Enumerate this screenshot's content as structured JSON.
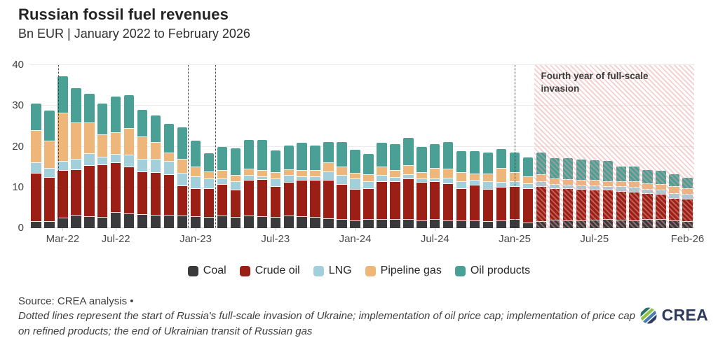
{
  "header": {
    "title": "Russian fossil fuel revenues",
    "subtitle": "Bn EUR | January 2022 to February 2026"
  },
  "legend": {
    "items": [
      {
        "label": "Coal",
        "color": "#3a3a3c"
      },
      {
        "label": "Crude oil",
        "color": "#9b1f14"
      },
      {
        "label": "LNG",
        "color": "#a3cfda"
      },
      {
        "label": "Pipeline gas",
        "color": "#efb67a"
      },
      {
        "label": "Oil products",
        "color": "#4ba095"
      }
    ]
  },
  "footer": {
    "source": "Source: CREA analysis •",
    "footnote": "Dotted lines represent the start of Russia's full-scale invasion of Ukraine; implementation of oil price cap; implementation of price cap on refined products; the end of Ukrainian transit of Russian gas",
    "logo_text": "CREA"
  },
  "chart_data": {
    "type": "bar",
    "stacked": true,
    "title": "Russian fossil fuel revenues",
    "ylabel": "Bn EUR",
    "xlabel": "",
    "ylim": [
      0,
      40
    ],
    "yticks": [
      0,
      10,
      20,
      30,
      40
    ],
    "grid": true,
    "legend_position": "bottom",
    "categories": [
      "Jan-22",
      "Feb-22",
      "Mar-22",
      "Apr-22",
      "May-22",
      "Jun-22",
      "Jul-22",
      "Aug-22",
      "Sep-22",
      "Oct-22",
      "Nov-22",
      "Dec-22",
      "Jan-23",
      "Feb-23",
      "Mar-23",
      "Apr-23",
      "May-23",
      "Jun-23",
      "Jul-23",
      "Aug-23",
      "Sep-23",
      "Oct-23",
      "Nov-23",
      "Dec-23",
      "Jan-24",
      "Feb-24",
      "Mar-24",
      "Apr-24",
      "May-24",
      "Jun-24",
      "Jul-24",
      "Aug-24",
      "Sep-24",
      "Oct-24",
      "Nov-24",
      "Dec-24",
      "Jan-25",
      "Feb-25",
      "Mar-25",
      "Apr-25",
      "May-25",
      "Jun-25",
      "Jul-25",
      "Aug-25",
      "Sep-25",
      "Oct-25",
      "Nov-25",
      "Dec-25",
      "Jan-26",
      "Feb-26"
    ],
    "x_tick_labels": [
      {
        "label": "Mar-22",
        "index": 2
      },
      {
        "label": "Jul-22",
        "index": 6
      },
      {
        "label": "Jan-23",
        "index": 12
      },
      {
        "label": "Jul-23",
        "index": 18
      },
      {
        "label": "Jan-24",
        "index": 24
      },
      {
        "label": "Jul-24",
        "index": 30
      },
      {
        "label": "Jan-25",
        "index": 36
      },
      {
        "label": "Jul-25",
        "index": 42
      },
      {
        "label": "Feb-26",
        "index": 49
      }
    ],
    "series": [
      {
        "name": "Coal",
        "color": "#3a3a3c",
        "values": [
          1.5,
          1.5,
          2.4,
          3.1,
          2.8,
          2.6,
          3.7,
          3.4,
          3.3,
          3.1,
          3.1,
          2.9,
          2.8,
          2.6,
          2.9,
          2.6,
          2.9,
          2.8,
          2.6,
          2.9,
          2.8,
          2.6,
          2.2,
          2.0,
          1.8,
          2.0,
          2.0,
          2.0,
          2.0,
          1.8,
          2.1,
          1.8,
          1.7,
          1.8,
          1.5,
          1.8,
          2.0,
          1.2,
          1.6,
          1.9,
          1.7,
          1.7,
          1.9,
          2.1,
          1.9,
          1.7,
          2.1,
          2.1,
          1.7,
          1.5
        ]
      },
      {
        "name": "Crude oil",
        "color": "#9b1f14",
        "values": [
          11.9,
          10.9,
          11.6,
          11.1,
          12.5,
          12.9,
          12.2,
          11.5,
          10.4,
          10.5,
          9.9,
          7.4,
          6.9,
          7.1,
          7.7,
          6.7,
          8.8,
          9.0,
          7.5,
          8.2,
          8.8,
          9.1,
          9.4,
          8.7,
          7.6,
          7.7,
          9.4,
          9.3,
          10.0,
          9.3,
          9.2,
          9.1,
          8.0,
          8.6,
          8.0,
          8.2,
          8.1,
          8.5,
          8.5,
          7.8,
          7.9,
          7.8,
          7.4,
          7.1,
          7.0,
          7.1,
          6.4,
          6.1,
          5.6,
          5.5
        ]
      },
      {
        "name": "LNG",
        "color": "#a3cfda",
        "values": [
          2.5,
          2.2,
          2.4,
          2.7,
          2.9,
          1.8,
          2.1,
          2.9,
          3.2,
          3.3,
          3.3,
          3.1,
          2.8,
          2.3,
          1.4,
          2.1,
          1.2,
          0.8,
          2.0,
          1.7,
          1.0,
          0.9,
          2.1,
          2.2,
          2.6,
          1.6,
          1.4,
          1.1,
          1.0,
          0.9,
          0.7,
          1.3,
          1.6,
          1.2,
          1.8,
          1.1,
          1.2,
          1.2,
          1.2,
          0.9,
          0.9,
          0.8,
          1.0,
          0.9,
          1.2,
          1.1,
          1.0,
          1.0,
          1.2,
          1.2
        ]
      },
      {
        "name": "Pipeline gas",
        "color": "#efb67a",
        "values": [
          7.9,
          6.7,
          11.7,
          8.9,
          7.6,
          5.6,
          5.4,
          6.6,
          5.5,
          4.0,
          2.0,
          3.5,
          2.4,
          1.7,
          2.0,
          1.5,
          1.5,
          1.4,
          1.5,
          1.5,
          1.5,
          1.4,
          2.2,
          2.0,
          1.4,
          1.7,
          2.1,
          1.6,
          2.2,
          1.6,
          2.6,
          2.2,
          2.3,
          1.7,
          2.0,
          3.5,
          2.3,
          1.7,
          1.7,
          1.4,
          1.4,
          1.3,
          1.3,
          1.3,
          1.2,
          1.5,
          1.4,
          1.4,
          1.6,
          1.5
        ]
      },
      {
        "name": "Oil products",
        "color": "#4ba095",
        "values": [
          6.8,
          7.5,
          9.2,
          8.6,
          7.2,
          7.6,
          8.8,
          8.3,
          6.7,
          6.8,
          7.3,
          7.9,
          6.6,
          4.6,
          5.9,
          6.6,
          7.2,
          7.6,
          5.5,
          6.0,
          6.9,
          6.2,
          5.2,
          6.2,
          5.8,
          5.2,
          6.0,
          6.6,
          6.9,
          6.3,
          6.0,
          6.7,
          5.3,
          5.6,
          5.3,
          4.8,
          5.0,
          4.8,
          5.6,
          5.2,
          5.3,
          5.2,
          5.0,
          5.1,
          3.9,
          3.8,
          3.4,
          3.5,
          3.2,
          2.7
        ]
      }
    ],
    "dotted_lines": {
      "positions_month_index": [
        2.16,
        11.92,
        13.98,
        36.5
      ]
    },
    "hatch_region": {
      "start_index": 38,
      "label": "Fourth year of full-scale invasion"
    }
  }
}
